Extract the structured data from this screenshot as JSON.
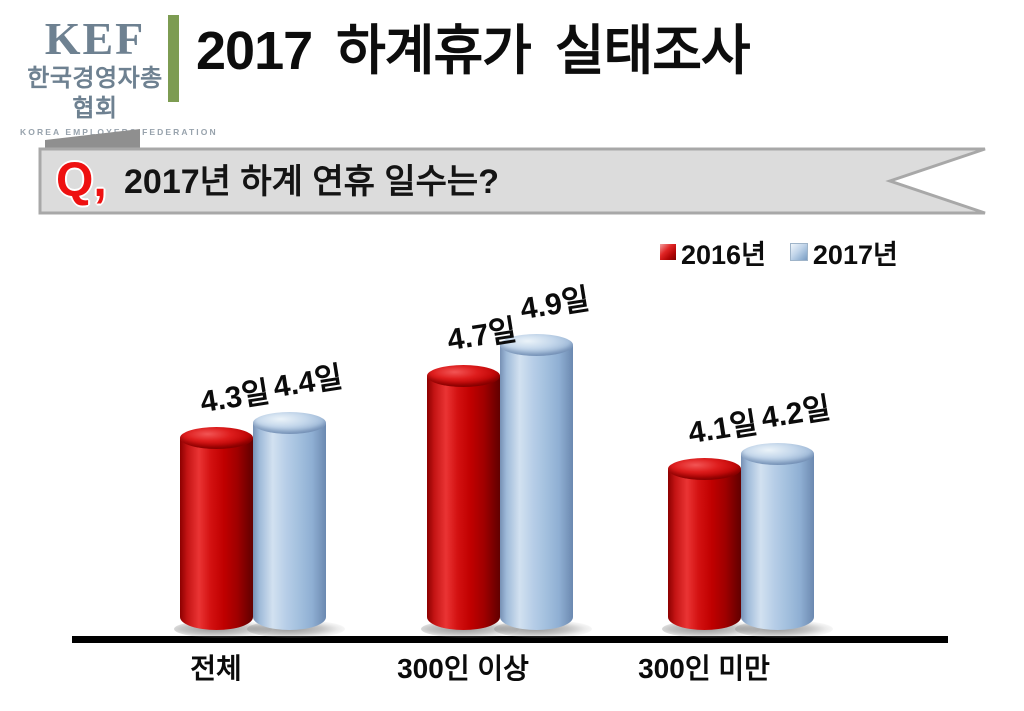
{
  "header": {
    "logo": {
      "acronym": "KEF",
      "korean_name": "한국경영자총협회",
      "english_name": "KOREA EMPLOYERS FEDERATION"
    },
    "title": "2017 하계휴가 실태조사"
  },
  "question": {
    "prefix": "Q,",
    "text": "2017년 하계 연휴 일수는?"
  },
  "chart_data": {
    "type": "bar",
    "style": "3d-cylinder",
    "categories": [
      "전체",
      "300인 이상",
      "300인 미만"
    ],
    "series": [
      {
        "name": "2016년",
        "color": "#c40a0a",
        "values": [
          4.3,
          4.7,
          4.1
        ],
        "labels": [
          "4.3일",
          "4.7일",
          "4.1일"
        ]
      },
      {
        "name": "2017년",
        "color": "#a8c1dd",
        "values": [
          4.4,
          4.9,
          4.2
        ],
        "labels": [
          "4.4일",
          "4.9일",
          "4.2일"
        ]
      }
    ],
    "unit": "일",
    "ylim": [
      3.0,
      5.2
    ],
    "grid": false,
    "legend_position": "top-right",
    "xlabel": "",
    "ylabel": ""
  },
  "colors": {
    "accent_green": "#7d9c52",
    "question_red": "#ee1111",
    "banner_fill": "#dcdcdc",
    "banner_border": "#a8a8a8",
    "banner_fold": "#8f8f8f",
    "logo_gray": "#6e8191",
    "axis_black": "#000000"
  }
}
